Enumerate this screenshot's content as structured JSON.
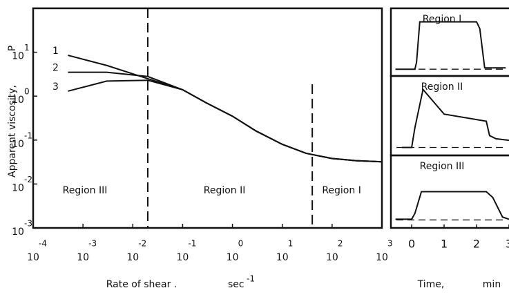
{
  "chart_data": [
    {
      "type": "line",
      "ylabel": "Apparent viscosity,",
      "yunit": "P",
      "xlabel": "Rate of shear .",
      "xunit": "sec",
      "xunit_exponent": "-1",
      "xlog": true,
      "ylog": true,
      "xlim": [
        0.0001,
        1000
      ],
      "ylim": [
        0.001,
        100
      ],
      "xticks": [
        {
          "value": 0.0001,
          "label": "10",
          "exponent": "-4"
        },
        {
          "value": 0.001,
          "label": "10",
          "exponent": "-3"
        },
        {
          "value": 0.01,
          "label": "10",
          "exponent": "-2"
        },
        {
          "value": 0.1,
          "label": "10",
          "exponent": "-1"
        },
        {
          "value": 1,
          "label": "10",
          "exponent": "0"
        },
        {
          "value": 10,
          "label": "10",
          "exponent": "1"
        },
        {
          "value": 100,
          "label": "10",
          "exponent": "2"
        },
        {
          "value": 1000,
          "label": "10",
          "exponent": "3"
        }
      ],
      "yticks": [
        {
          "value": 0.001,
          "label": "10",
          "exponent": "-3"
        },
        {
          "value": 0.01,
          "label": "10",
          "exponent": "-2"
        },
        {
          "value": 0.1,
          "label": "10",
          "exponent": "-1"
        },
        {
          "value": 1,
          "label": "10",
          "exponent": "0"
        },
        {
          "value": 10,
          "label": "10",
          "exponent": "1"
        }
      ],
      "x": [
        0.0005,
        0.003,
        0.02,
        0.1,
        0.3,
        1,
        3,
        10,
        30,
        100,
        300,
        1000
      ],
      "series": [
        {
          "name": "1",
          "color": "#111111",
          "values": [
            8.5,
            5.0,
            2.5,
            1.4,
            0.7,
            0.35,
            0.16,
            0.08,
            0.05,
            0.038,
            0.034,
            0.032
          ]
        },
        {
          "name": "2",
          "color": "#111111",
          "values": [
            3.5,
            3.5,
            2.8,
            1.4,
            0.7,
            0.35,
            0.16,
            0.08,
            0.05,
            0.038,
            0.034,
            0.032
          ]
        },
        {
          "name": "3",
          "color": "#111111",
          "values": [
            1.3,
            2.2,
            2.3,
            1.4,
            0.7,
            0.35,
            0.16,
            0.08,
            0.05,
            0.038,
            0.034,
            0.032
          ]
        }
      ],
      "vlines": [
        0.02,
        40
      ],
      "regions": [
        "Region III",
        "Region II",
        "Region I"
      ]
    },
    {
      "type": "panels",
      "xlabel": "Time,",
      "xunit": "min",
      "xlim": [
        -0.64,
        3.0
      ],
      "ylim": [
        0,
        1
      ],
      "xticks": [
        0,
        1,
        2,
        3
      ],
      "panels": [
        {
          "title": "Region I",
          "baseline": 0.1,
          "x": [
            -0.5,
            0.1,
            0.15,
            0.25,
            2.0,
            2.1,
            2.25,
            2.9
          ],
          "values": [
            0.1,
            0.1,
            0.2,
            0.8,
            0.8,
            0.7,
            0.12,
            0.12
          ]
        },
        {
          "title": "Region II",
          "baseline": 0.1,
          "x": [
            -0.3,
            0.0,
            0.1,
            0.35,
            1.0,
            2.3,
            2.4,
            2.6,
            3.0
          ],
          "values": [
            0.1,
            0.1,
            0.35,
            0.83,
            0.52,
            0.43,
            0.25,
            0.21,
            0.19
          ]
        },
        {
          "title": "Region III",
          "baseline": 0.11,
          "x": [
            -0.5,
            0.0,
            0.1,
            0.3,
            2.3,
            2.5,
            2.8,
            3.0
          ],
          "values": [
            0.12,
            0.12,
            0.2,
            0.5,
            0.5,
            0.42,
            0.15,
            0.12
          ]
        }
      ]
    }
  ]
}
